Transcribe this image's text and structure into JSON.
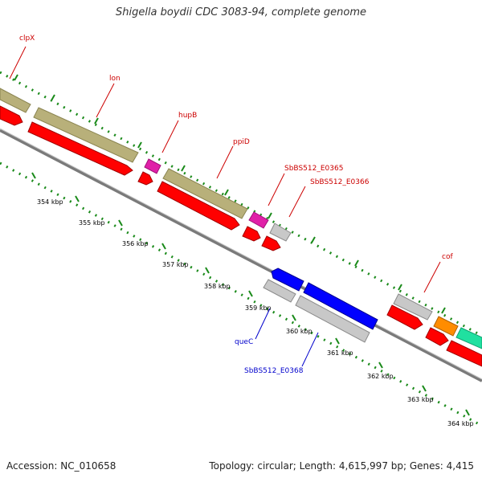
{
  "title": "Shigella boydii CDC 3083-94, complete genome",
  "footer": {
    "accession": "Accession: NC_010658",
    "summary": "Topology: circular; Length: 4,615,997 bp; Genes: 4,415"
  },
  "colors": {
    "forward_label": "#cc0000",
    "reverse_label": "#0000cc",
    "tick": "#1a8a1a"
  },
  "tick_labels": [
    "354 kbp",
    "355 kbp",
    "356 kbp",
    "357 kbp",
    "358 kbp",
    "359 kbp",
    "360 kbp",
    "361 kbp",
    "362 kbp",
    "363 kbp",
    "364 kbp"
  ],
  "gene_labels": [
    "clpX",
    "lon",
    "hupB",
    "ppiD",
    "SbBS512_E0365",
    "SbBS512_E0366",
    "cof",
    "queC",
    "SbBS512_E0368"
  ]
}
